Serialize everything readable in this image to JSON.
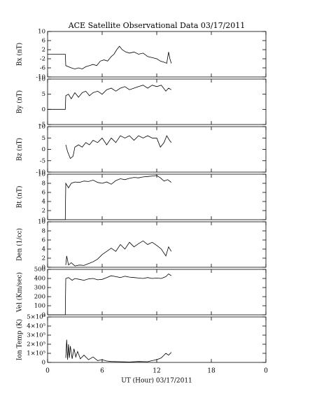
{
  "chart_data": [
    {
      "type": "line",
      "title": "ACE Satellite Observational Data   03/17/2011",
      "ylabel": "Bx (nT)",
      "ylim": [
        -10,
        10
      ],
      "yticks": [
        -10,
        -6,
        -2,
        2,
        6,
        10
      ],
      "x": [
        0,
        1.95,
        2,
        2.3,
        2.6,
        3,
        3.4,
        3.8,
        4.2,
        4.6,
        5,
        5.4,
        5.8,
        6.2,
        6.6,
        7,
        7.3,
        7.6,
        7.9,
        8.2,
        8.6,
        9,
        9.5,
        10,
        10.5,
        11,
        11.5,
        12,
        12.4,
        12.8,
        13.1,
        13.3,
        13.45,
        13.6
      ],
      "values": [
        0,
        0,
        -5,
        -5.5,
        -6,
        -6.5,
        -6,
        -6.5,
        -5.5,
        -5,
        -4.5,
        -5,
        -3,
        -2.5,
        -3,
        -1,
        0,
        2,
        3.5,
        2,
        1,
        0.5,
        1,
        0,
        0.5,
        -1,
        -1.5,
        -2,
        -3,
        -3.5,
        -4,
        1,
        -2,
        -4
      ]
    },
    {
      "type": "line",
      "ylabel": "By (nT)",
      "ylim": [
        -5,
        10
      ],
      "yticks": [
        -5,
        0,
        5,
        10
      ],
      "x": [
        0,
        1.95,
        2,
        2.3,
        2.6,
        3,
        3.4,
        3.8,
        4.2,
        4.6,
        5,
        5.5,
        6,
        6.5,
        7,
        7.5,
        8,
        8.5,
        9,
        9.5,
        10,
        10.5,
        11,
        11.5,
        12,
        12.5,
        13,
        13.3,
        13.6
      ],
      "values": [
        0,
        0,
        4.5,
        5,
        3.5,
        5.5,
        4,
        5.5,
        6,
        4.5,
        5.5,
        6,
        5,
        6.5,
        7,
        6,
        7,
        7.5,
        6.5,
        7,
        7.5,
        8,
        7,
        8,
        7.5,
        8,
        6,
        7,
        6.5
      ]
    },
    {
      "type": "line",
      "ylabel": "Bz (nT)",
      "ylim": [
        -10,
        10
      ],
      "yticks": [
        -10,
        -5,
        0,
        5,
        10
      ],
      "x": [
        2,
        2.2,
        2.5,
        2.8,
        3,
        3.4,
        3.8,
        4.2,
        4.6,
        5,
        5.5,
        6,
        6.5,
        7,
        7.5,
        8,
        8.5,
        9,
        9.5,
        10,
        10.5,
        11,
        11.5,
        12,
        12.4,
        12.8,
        13.1,
        13.4,
        13.6
      ],
      "values": [
        2,
        -1,
        -4,
        -3,
        1,
        2,
        1,
        3,
        2,
        4,
        3,
        5,
        2,
        5,
        3,
        6,
        5,
        6,
        4,
        6,
        5,
        6,
        5,
        5,
        1,
        3,
        6,
        4,
        3
      ]
    },
    {
      "type": "line",
      "ylabel": "Bt (nT)",
      "ylim": [
        0,
        10
      ],
      "yticks": [
        0,
        2,
        4,
        6,
        8,
        10
      ],
      "x": [
        0,
        1.95,
        2,
        2.3,
        2.6,
        3,
        3.5,
        4,
        4.5,
        5,
        5.5,
        6,
        6.5,
        7,
        7.5,
        8,
        8.5,
        9,
        9.5,
        10,
        10.5,
        11,
        11.5,
        12,
        12.4,
        12.8,
        13.2,
        13.6
      ],
      "values": [
        0,
        0,
        8,
        7,
        8,
        8.3,
        8.2,
        8.5,
        8.4,
        8.7,
        8.2,
        8,
        8.3,
        7.8,
        8.6,
        9,
        8.8,
        9.1,
        9.3,
        9.2,
        9.4,
        9.5,
        9.6,
        9.7,
        9.2,
        8.5,
        8.8,
        8.2
      ]
    },
    {
      "type": "line",
      "ylabel": "Den (1/cc)",
      "ylim": [
        0,
        10
      ],
      "yticks": [
        0,
        2,
        4,
        6,
        8,
        10
      ],
      "x": [
        2,
        2.1,
        2.3,
        2.6,
        3,
        3.5,
        4,
        4.5,
        5,
        5.5,
        6,
        6.5,
        7,
        7.5,
        8,
        8.5,
        9,
        9.5,
        10,
        10.5,
        11,
        11.5,
        12,
        12.5,
        13,
        13.3,
        13.6
      ],
      "values": [
        0.5,
        2.5,
        0.5,
        1,
        0.3,
        0.5,
        0.4,
        0.8,
        1.2,
        1.8,
        2.8,
        3.5,
        4.2,
        3.5,
        5,
        4,
        5.5,
        4.5,
        5.2,
        5.8,
        5,
        5.5,
        4.8,
        4,
        2.5,
        4.5,
        3.5
      ]
    },
    {
      "type": "line",
      "ylabel": "Vel (Km/sec)",
      "ylim": [
        0,
        500
      ],
      "yticks": [
        0,
        100,
        200,
        300,
        400,
        500
      ],
      "x": [
        0,
        1.95,
        2,
        2.3,
        2.7,
        3,
        3.5,
        4,
        4.5,
        5,
        5.5,
        6,
        6.5,
        7,
        7.5,
        8,
        8.5,
        9,
        9.5,
        10,
        10.5,
        11,
        11.5,
        12,
        12.5,
        13,
        13.3,
        13.6
      ],
      "values": [
        0,
        0,
        400,
        410,
        380,
        400,
        390,
        380,
        395,
        400,
        385,
        390,
        410,
        430,
        420,
        410,
        425,
        415,
        410,
        405,
        400,
        410,
        400,
        405,
        400,
        420,
        450,
        430
      ]
    },
    {
      "type": "line",
      "ylabel": "Ion Temp (K)",
      "ylim": [
        0,
        500000
      ],
      "yticks": [
        0,
        {
          "value": 100000,
          "label": "1×10⁵"
        },
        {
          "value": 200000,
          "label": "2×10⁵"
        },
        {
          "value": 300000,
          "label": "3×10⁵"
        },
        {
          "value": 400000,
          "label": "4×10⁵"
        },
        {
          "value": 500000,
          "label": "5×10⁵"
        }
      ],
      "x": [
        2,
        2.1,
        2.2,
        2.3,
        2.4,
        2.5,
        2.7,
        2.9,
        3.1,
        3.3,
        3.6,
        4,
        4.5,
        5,
        5.5,
        6,
        6.5,
        7,
        8,
        9,
        10,
        11,
        11.5,
        12,
        12.5,
        13,
        13.3,
        13.6
      ],
      "values": [
        50000,
        250000,
        30000,
        200000,
        50000,
        180000,
        40000,
        150000,
        60000,
        120000,
        40000,
        80000,
        30000,
        60000,
        20000,
        30000,
        15000,
        10000,
        8000,
        5000,
        10000,
        8000,
        20000,
        30000,
        50000,
        100000,
        80000,
        110000
      ],
      "xlabel": "UT (Hour)  03/17/2011",
      "xlim": [
        0,
        24
      ],
      "xticks": [
        0,
        6,
        12,
        18,
        {
          "value": 24,
          "label": "0"
        }
      ]
    }
  ]
}
